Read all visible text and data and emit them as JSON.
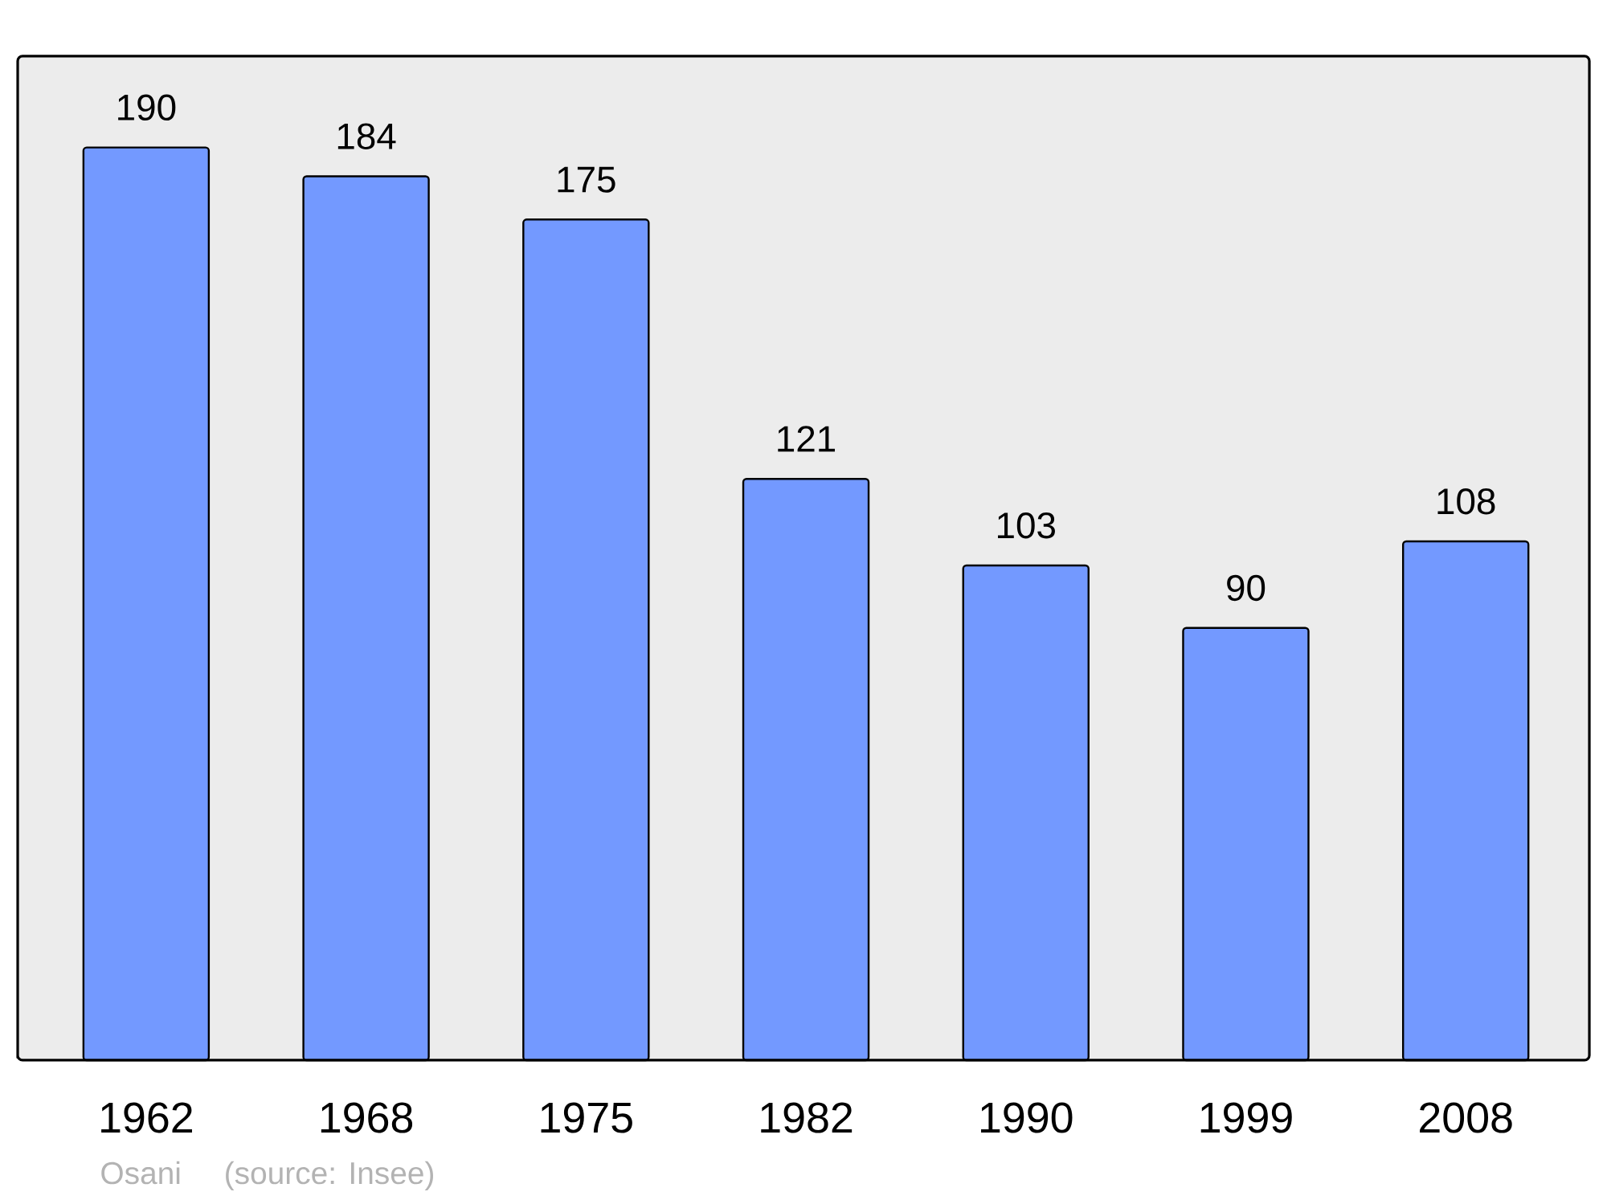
{
  "chart_data": {
    "type": "bar",
    "categories": [
      "1962",
      "1968",
      "1975",
      "1982",
      "1990",
      "1999",
      "2008"
    ],
    "values": [
      190,
      184,
      175,
      121,
      103,
      90,
      108
    ],
    "color": "#7399ff",
    "data_labels": true,
    "tick_labels": "x",
    "annotations": [
      "Osani",
      "(source: Insee)"
    ]
  }
}
